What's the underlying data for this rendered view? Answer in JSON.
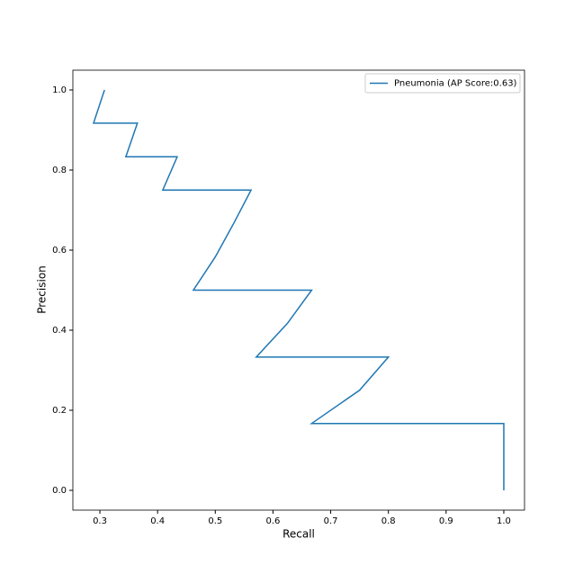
{
  "chart_data": {
    "type": "line",
    "x_label": "Recall",
    "y_label": "Precision",
    "x": [
      0.308,
      0.289,
      0.365,
      0.345,
      0.434,
      0.409,
      0.562,
      0.532,
      0.5,
      0.462,
      0.667,
      0.625,
      0.571,
      0.8,
      0.75,
      0.667,
      1.0,
      1.0
    ],
    "series": [
      {
        "name": "Pneumonia (AP Score:0.63)",
        "color": "#1f77b4",
        "values": [
          1.0,
          0.917,
          0.917,
          0.833,
          0.833,
          0.75,
          0.75,
          0.667,
          0.583,
          0.5,
          0.5,
          0.417,
          0.333,
          0.333,
          0.25,
          0.167,
          0.167,
          0.0
        ]
      }
    ],
    "xlim": [
      0.2532,
      1.0359
    ],
    "xticks": [
      0.3,
      0.4,
      0.5,
      0.6,
      0.7,
      0.8,
      0.9,
      {
        "value": 1,
        "label": "1.0"
      }
    ],
    "ylim": [
      -0.0494,
      1.0494
    ],
    "yticks": [
      {
        "value": 0,
        "label": "0.0"
      },
      0.2,
      0.4,
      0.6,
      0.8,
      {
        "value": 1,
        "label": "1.0"
      }
    ],
    "legend": "upper right"
  }
}
